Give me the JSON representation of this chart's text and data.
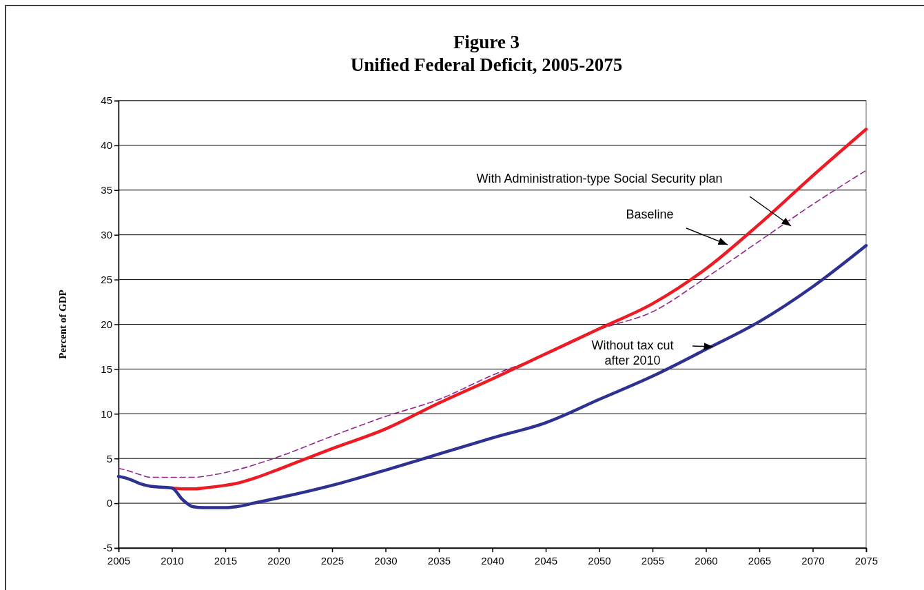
{
  "chart_data": {
    "type": "line",
    "title": "Figure 3",
    "subtitle": "Unified Federal Deficit, 2005-2075",
    "ylabel": "Percent of GDP",
    "xlim": [
      2005,
      2075
    ],
    "xticks": [
      2005,
      2010,
      2015,
      2020,
      2025,
      2030,
      2035,
      2040,
      2045,
      2050,
      2055,
      2060,
      2065,
      2070,
      2075
    ],
    "ylim": [
      -5,
      45
    ],
    "yticks": [
      -5,
      0,
      5,
      10,
      15,
      20,
      25,
      30,
      35,
      40,
      45
    ],
    "grid": "y",
    "marker": "none",
    "series": [
      {
        "color": "#92278f",
        "line_style": "dashed",
        "x": [
          2005,
          2006,
          2007,
          2008,
          2010,
          2012,
          2014,
          2016,
          2018,
          2020,
          2025,
          2030,
          2035,
          2040,
          2045,
          2050,
          2055,
          2060,
          2065,
          2070,
          2075
        ],
        "values": [
          3.9,
          3.6,
          3.2,
          2.9,
          2.9,
          2.9,
          3.2,
          3.7,
          4.4,
          5.2,
          7.5,
          9.7,
          11.6,
          14.3,
          16.6,
          19.4,
          21.4,
          25.2,
          29.3,
          33.4,
          37.2
        ]
      },
      {
        "color": "#ed1c24",
        "line_style": "solid",
        "x": [
          2010,
          2011,
          2012,
          2013,
          2015,
          2016,
          2018,
          2020,
          2025,
          2030,
          2035,
          2040,
          2045,
          2050,
          2055,
          2060,
          2065,
          2070,
          2075
        ],
        "values": [
          1.7,
          1.6,
          1.6,
          1.7,
          2.0,
          2.2,
          2.9,
          3.8,
          6.1,
          8.3,
          11.2,
          13.9,
          16.7,
          19.5,
          22.3,
          26.2,
          31.2,
          36.6,
          41.8
        ]
      },
      {
        "color": "#2e3192",
        "line_style": "solid",
        "x": [
          2005,
          2006,
          2007,
          2008,
          2009,
          2010,
          2011,
          2012,
          2013,
          2015,
          2016,
          2018,
          2020,
          2025,
          2030,
          2035,
          2040,
          2045,
          2050,
          2055,
          2060,
          2065,
          2070,
          2075
        ],
        "values": [
          3.0,
          2.7,
          2.2,
          1.9,
          1.8,
          1.7,
          0.4,
          -0.4,
          -0.5,
          -0.5,
          -0.4,
          0.1,
          0.6,
          2.0,
          3.7,
          5.5,
          7.3,
          9.0,
          11.6,
          14.2,
          17.2,
          20.3,
          24.2,
          28.8
        ]
      }
    ],
    "annotations": [
      "With Administration-type Social Security plan",
      "Baseline",
      "Without tax cut\nafter 2010"
    ]
  }
}
